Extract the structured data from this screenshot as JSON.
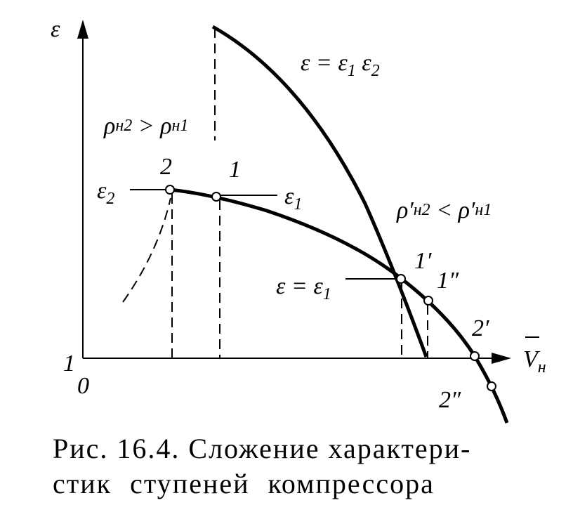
{
  "axes": {
    "y_label": "ε",
    "x_label": [
      "V",
      "н"
    ],
    "origin": "0",
    "y_start": "1"
  },
  "labels": {
    "product": [
      "ε = ε",
      "1",
      " ε",
      "2"
    ],
    "pressure_left": [
      "ρ",
      "н2",
      " > ",
      "ρ",
      "н1"
    ],
    "pressure_right": [
      "ρ′",
      "н2",
      " < ",
      "ρ′",
      "н1"
    ],
    "eps2": [
      "ε",
      "2"
    ],
    "eps1": [
      "ε",
      "1"
    ],
    "eps_eq": [
      "ε = ε",
      "1"
    ]
  },
  "points": {
    "p2": "2",
    "p1": "1",
    "p1p": "1′",
    "p1pp": "1″",
    "p2p": "2′",
    "p2pp": "2″"
  },
  "caption": [
    "Рис. 16.4. Сложение характери-",
    "стик ступеней компрессора"
  ]
}
